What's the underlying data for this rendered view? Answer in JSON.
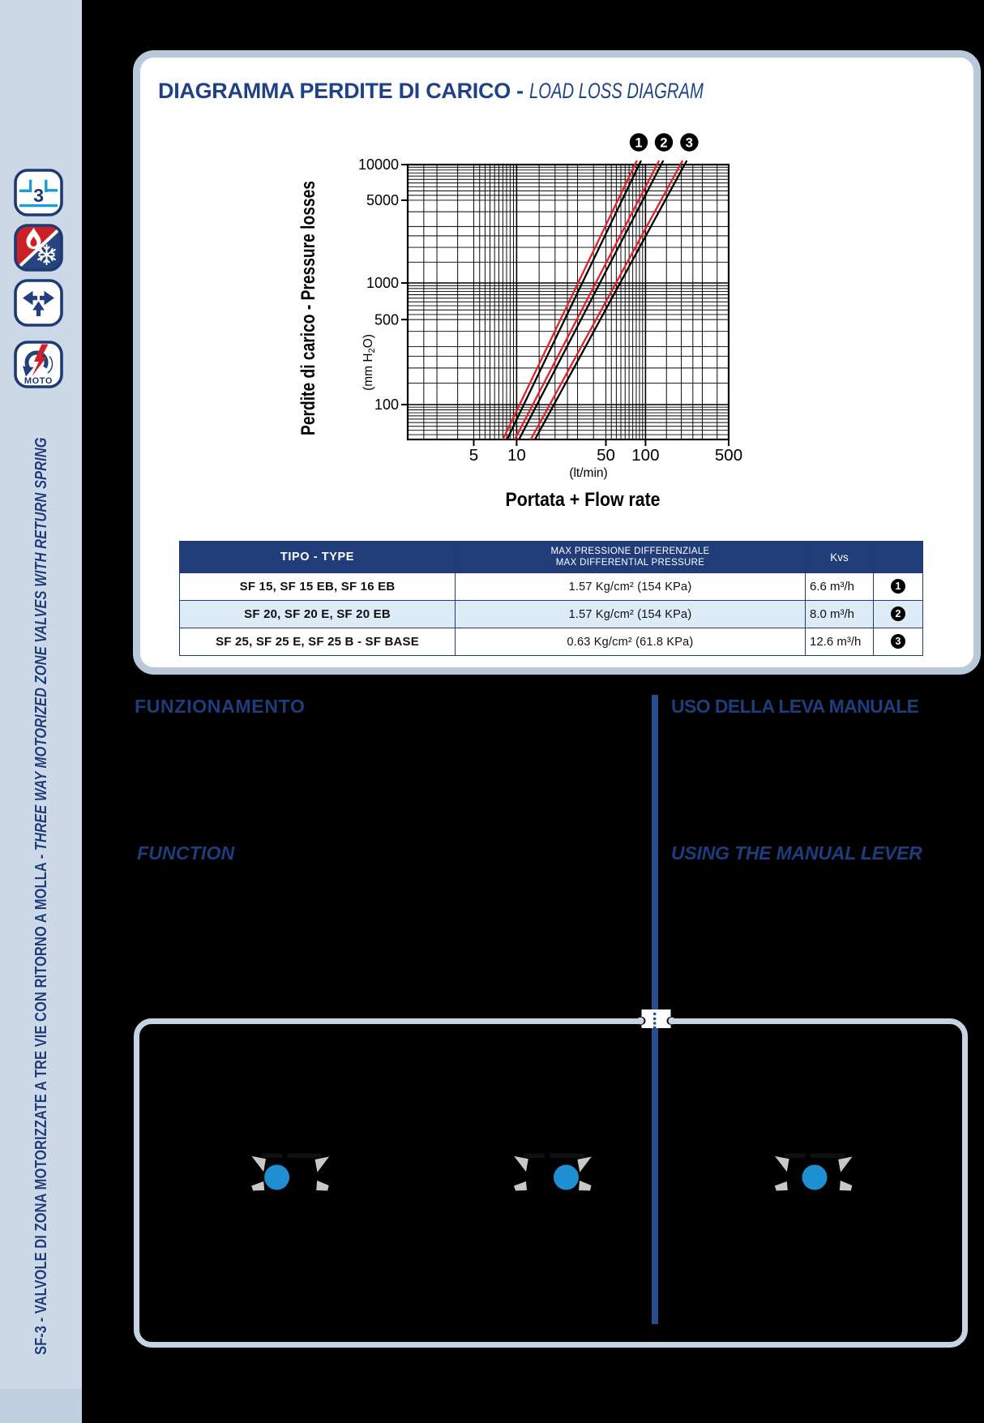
{
  "colors": {
    "page_bg": "#000000",
    "sidebar_bg": "#ccd8e6",
    "panel_border": "#b9c9dc",
    "navy": "#1e3d7d",
    "table_header_bg": "#203d7a",
    "table_alt_row_bg": "#dcebf6",
    "series_red": "#e32227",
    "series_outline": "#000000",
    "valve_ball_blue": "#1e8fd0",
    "valve_arrow_gray": "#c8c8c8",
    "icon_light_blue": "#199cdb",
    "icon_red": "#cb2026",
    "icon_navy": "#27447e"
  },
  "sidebar": {
    "icons": [
      {
        "name": "three-way-3-icon",
        "number": "3"
      },
      {
        "name": "heating-cooling-icon"
      },
      {
        "name": "flow-directions-icon"
      },
      {
        "name": "motorized-icon",
        "label": "MOTO"
      }
    ],
    "vertical_text_bold": "SF-3  -  VALVOLE DI ZONA MOTORIZZATE A TRE VIE CON RITORNO A MOLLA  -  ",
    "vertical_text_italic": "THREE WAY MOTORIZED ZONE VALVES WITH RETURN SPRING"
  },
  "panel": {
    "title_bold": "DIAGRAMMA PERDITE DI CARICO - ",
    "title_italic": "LOAD LOSS DIAGRAM"
  },
  "chart_data": {
    "type": "line",
    "x_scale": "log",
    "y_scale": "log",
    "x_range": [
      2,
      500
    ],
    "y_range": [
      50,
      10000
    ],
    "x_ticks": [
      5,
      10,
      50,
      100,
      500
    ],
    "y_ticks": [
      100,
      500,
      1000,
      5000,
      10000
    ],
    "xlabel": "(lt/min)",
    "ylabel": "Perdite di carico - Pressure losses",
    "ylabel_unit_pre": "(mm H",
    "ylabel_unit_sub": "2",
    "ylabel_unit_post": "O)",
    "caption": "Portata + Flow rate",
    "grid": true,
    "series": [
      {
        "label": "1",
        "kvs": 6.6,
        "points": [
          [
            8.0,
            50
          ],
          [
            86,
            12800
          ]
        ]
      },
      {
        "label": "2",
        "kvs": 8.0,
        "points": [
          [
            9.7,
            50
          ],
          [
            130,
            12800
          ]
        ]
      },
      {
        "label": "3",
        "kvs": 12.6,
        "points": [
          [
            12.9,
            50
          ],
          [
            205,
            12800
          ]
        ]
      }
    ]
  },
  "table": {
    "header_type": "TIPO - TYPE",
    "header_pressure_line1": "MAX PRESSIONE DIFFERENZIALE",
    "header_pressure_line2": "MAX DIFFERENTIAL PRESSURE",
    "header_kvs": "Kvs",
    "rows": [
      {
        "type": "SF 15, SF 15 EB, SF 16 EB",
        "pressure": "1.57 Kg/cm² (154 KPa)",
        "kvs": "6.6 m³/h",
        "badge": "1"
      },
      {
        "type": "SF 20, SF 20 E, SF 20 EB",
        "pressure": "1.57 Kg/cm² (154 KPa)",
        "kvs": "8.0 m³/h",
        "badge": "2"
      },
      {
        "type": "SF 25, SF 25 E, SF 25 B - SF BASE",
        "pressure": "0.63 Kg/cm² (61.8 KPa)",
        "kvs": "12.6 m³/h",
        "badge": "3"
      }
    ]
  },
  "sections": {
    "funzionamento": "FUNZIONAMENTO",
    "uso_leva": "USO DELLA LEVA MANUALE",
    "function": "FUNCTION",
    "using_lever": "USING THE MANUAL LEVER"
  }
}
